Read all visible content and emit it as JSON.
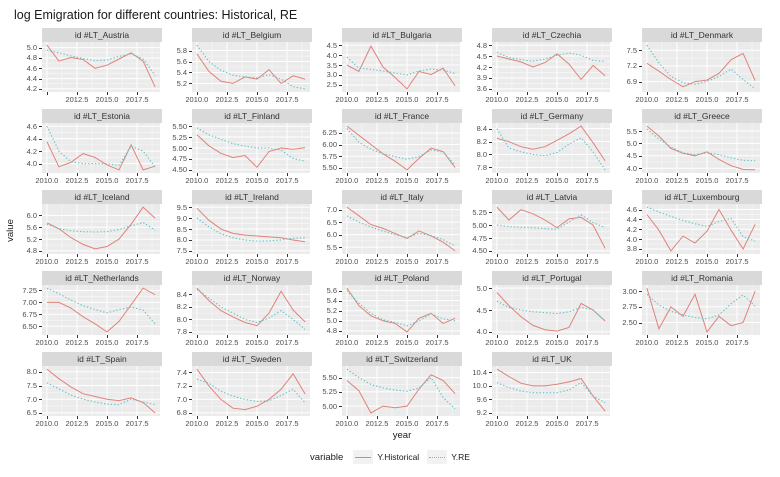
{
  "title": "log Emigration for different countries: Historical, RE",
  "axes": {
    "x_label": "year",
    "y_label": "value",
    "x_tick_values": [
      2010,
      2012.5,
      2015,
      2017.5
    ],
    "x_tick_labels": [
      "2010.0",
      "2012.5",
      "2015.0",
      "2017.5"
    ],
    "x_range": [
      2010,
      2019
    ]
  },
  "legend": {
    "title": "variable",
    "items": [
      {
        "label": "Y.Historical",
        "style": "solid",
        "color": "#e0827a"
      },
      {
        "label": "Y.RE",
        "style": "dotted",
        "color": "#63c3c6"
      }
    ]
  },
  "colors": {
    "historical_line": "#e0827a",
    "re_line": "#63c3c6",
    "panel_bg": "#ebebeb",
    "strip_bg": "#d9d9d9",
    "gridline": "#ffffff",
    "tick_text": "#4d4d4d"
  },
  "chart_data": {
    "type": "line",
    "x": [
      2010,
      2011,
      2012,
      2013,
      2014,
      2015,
      2016,
      2017,
      2018,
      2019
    ],
    "series_names": [
      "Y.Historical",
      "Y.RE"
    ],
    "panels": [
      {
        "title": "id #LT_Austria",
        "y_ticks": [
          "5.0",
          "4.8",
          "4.6",
          "4.4",
          "4.2"
        ],
        "x_tick_labels": [
          "",
          "2012.5",
          "2015.0",
          "2017.5"
        ],
        "historical": [
          5.05,
          4.74,
          4.81,
          4.77,
          4.6,
          4.66,
          4.78,
          4.9,
          4.74,
          4.24
        ],
        "re": [
          4.95,
          4.9,
          4.84,
          4.79,
          4.75,
          4.76,
          4.83,
          4.88,
          4.78,
          4.46
        ]
      },
      {
        "title": "id #LT_Belgium",
        "y_ticks": [
          "5.8",
          "5.6",
          "5.4",
          "5.2"
        ],
        "historical": [
          5.74,
          5.42,
          5.24,
          5.2,
          5.32,
          5.28,
          5.45,
          5.2,
          5.34,
          5.28
        ],
        "re": [
          5.9,
          5.6,
          5.44,
          5.35,
          5.32,
          5.3,
          5.36,
          5.28,
          5.14,
          5.1
        ]
      },
      {
        "title": "id #LT_Bulgaria",
        "y_ticks": [
          "4.5",
          "4.0",
          "3.5",
          "3.0",
          "2.5"
        ],
        "historical": [
          3.5,
          3.18,
          4.45,
          3.4,
          2.88,
          2.3,
          3.18,
          3.02,
          3.34,
          2.45
        ],
        "re": [
          3.9,
          3.34,
          3.28,
          3.2,
          3.1,
          3.0,
          3.2,
          3.3,
          3.24,
          3.08
        ]
      },
      {
        "title": "id #LT_Czechia",
        "y_ticks": [
          "4.8",
          "4.5",
          "4.2",
          "3.9",
          "3.6"
        ],
        "historical": [
          4.5,
          4.42,
          4.34,
          4.2,
          4.32,
          4.56,
          4.28,
          3.86,
          4.24,
          3.96
        ],
        "re": [
          4.6,
          4.46,
          4.4,
          4.36,
          4.42,
          4.52,
          4.58,
          4.52,
          4.38,
          4.35
        ]
      },
      {
        "title": "id #LT_Denmark",
        "y_ticks": [
          "7.5",
          "7.2",
          "6.9"
        ],
        "historical": [
          7.25,
          7.1,
          6.94,
          6.8,
          6.9,
          6.93,
          7.06,
          7.32,
          7.44,
          6.92
        ],
        "re": [
          7.6,
          7.26,
          7.0,
          6.88,
          6.85,
          6.9,
          7.0,
          7.14,
          6.94,
          6.76
        ]
      },
      {
        "title": "id #LT_Estonia",
        "y_ticks": [
          "4.6",
          "4.4",
          "4.2",
          "4.0"
        ],
        "historical": [
          4.35,
          3.95,
          4.02,
          4.16,
          4.1,
          3.98,
          3.9,
          4.3,
          3.9,
          3.96
        ],
        "re": [
          4.6,
          4.2,
          4.03,
          4.0,
          4.0,
          4.0,
          3.97,
          4.28,
          4.2,
          3.95
        ]
      },
      {
        "title": "id #LT_Finland",
        "y_ticks": [
          "5.50",
          "5.25",
          "5.00",
          "4.75",
          "4.50"
        ],
        "historical": [
          5.3,
          5.05,
          4.88,
          4.78,
          4.83,
          4.56,
          4.92,
          5.0,
          4.97,
          5.01
        ],
        "re": [
          5.46,
          5.3,
          5.2,
          5.1,
          5.04,
          5.0,
          5.0,
          4.95,
          4.76,
          4.7
        ]
      },
      {
        "title": "id #LT_France",
        "y_ticks": [
          "6.25",
          "6.00",
          "5.75",
          "5.50"
        ],
        "historical": [
          6.4,
          6.2,
          6.0,
          5.8,
          5.64,
          5.45,
          5.7,
          5.92,
          5.85,
          5.5
        ],
        "re": [
          6.35,
          6.05,
          5.9,
          5.8,
          5.74,
          5.68,
          5.74,
          5.88,
          5.84,
          5.55
        ]
      },
      {
        "title": "id #LT_Germany",
        "y_ticks": [
          "8.4",
          "8.2",
          "8.0",
          "7.8"
        ],
        "historical": [
          8.25,
          8.2,
          8.12,
          8.08,
          8.12,
          8.22,
          8.32,
          8.44,
          8.18,
          7.9
        ],
        "re": [
          8.4,
          8.1,
          8.04,
          8.0,
          7.98,
          8.03,
          8.16,
          8.26,
          8.04,
          7.76
        ]
      },
      {
        "title": "id #LT_Greece",
        "y_ticks": [
          "5.5",
          "5.0",
          "4.5",
          "4.0"
        ],
        "historical": [
          5.7,
          5.3,
          4.8,
          4.6,
          4.5,
          4.66,
          4.35,
          4.1,
          3.95,
          3.93
        ],
        "re": [
          5.58,
          5.18,
          4.85,
          4.62,
          4.55,
          4.62,
          4.55,
          4.42,
          4.32,
          4.3
        ]
      },
      {
        "title": "id #LT_Iceland",
        "y_ticks": [
          "6.0",
          "5.6",
          "5.2",
          "4.8"
        ],
        "historical": [
          5.75,
          5.55,
          5.25,
          5.02,
          4.87,
          4.95,
          5.2,
          5.7,
          6.28,
          5.9
        ],
        "re": [
          5.7,
          5.55,
          5.48,
          5.45,
          5.44,
          5.45,
          5.52,
          5.65,
          5.76,
          5.5
        ]
      },
      {
        "title": "id #LT_Ireland",
        "y_ticks": [
          "9.5",
          "9.0",
          "8.5",
          "8.0",
          "7.5"
        ],
        "historical": [
          9.45,
          8.9,
          8.5,
          8.3,
          8.22,
          8.18,
          8.14,
          8.1,
          8.0,
          7.92
        ],
        "re": [
          9.0,
          8.6,
          8.28,
          8.1,
          8.0,
          7.95,
          7.96,
          8.0,
          8.08,
          8.1
        ]
      },
      {
        "title": "id #LT_Italy",
        "y_ticks": [
          "7.0",
          "6.5",
          "6.0",
          "5.5"
        ],
        "historical": [
          7.1,
          6.75,
          6.4,
          6.25,
          6.05,
          5.85,
          6.15,
          5.95,
          5.7,
          5.35
        ],
        "re": [
          6.75,
          6.5,
          6.3,
          6.14,
          6.0,
          5.88,
          6.05,
          5.97,
          5.8,
          5.55
        ]
      },
      {
        "title": "id #LT_Latvia",
        "y_ticks": [
          "5.25",
          "5.00",
          "4.75",
          "4.50"
        ],
        "historical": [
          5.35,
          5.1,
          5.3,
          5.22,
          5.1,
          4.95,
          5.12,
          5.15,
          5.0,
          4.55
        ],
        "re": [
          5.0,
          4.97,
          4.96,
          4.95,
          4.93,
          4.92,
          5.06,
          5.2,
          5.05,
          4.95
        ]
      },
      {
        "title": "id #LT_Luxembourg",
        "y_ticks": [
          "4.6",
          "4.4",
          "4.2",
          "4.0",
          "3.8"
        ],
        "historical": [
          4.5,
          4.18,
          3.76,
          4.06,
          3.92,
          4.16,
          4.6,
          4.18,
          3.8,
          4.3
        ],
        "re": [
          4.65,
          4.55,
          4.46,
          4.38,
          4.31,
          4.26,
          4.36,
          4.42,
          4.05,
          3.96
        ]
      },
      {
        "title": "id #LT_Netherlands",
        "y_ticks": [
          "7.25",
          "7.00",
          "6.75",
          "6.50"
        ],
        "historical": [
          7.0,
          7.0,
          6.88,
          6.7,
          6.55,
          6.38,
          6.6,
          6.95,
          7.3,
          7.16
        ],
        "re": [
          7.3,
          7.18,
          7.05,
          6.93,
          6.85,
          6.78,
          6.85,
          6.9,
          6.84,
          6.55
        ]
      },
      {
        "title": "id #LT_Norway",
        "y_ticks": [
          "8.4",
          "8.2",
          "8.0",
          "7.8"
        ],
        "historical": [
          8.5,
          8.3,
          8.14,
          8.04,
          7.95,
          7.9,
          8.1,
          8.45,
          8.15,
          7.96
        ],
        "re": [
          8.48,
          8.34,
          8.2,
          8.1,
          8.0,
          7.95,
          8.02,
          8.14,
          8.0,
          7.84
        ]
      },
      {
        "title": "id #LT_Poland",
        "y_ticks": [
          "5.6",
          "5.4",
          "5.2",
          "5.0",
          "4.8"
        ],
        "historical": [
          5.65,
          5.3,
          5.1,
          5.0,
          4.95,
          4.78,
          5.05,
          5.15,
          4.95,
          5.05
        ],
        "re": [
          5.6,
          5.35,
          5.15,
          5.02,
          4.97,
          4.9,
          5.0,
          5.14,
          5.04,
          5.0
        ]
      },
      {
        "title": "id #LT_Portugal",
        "y_ticks": [
          "5.0",
          "4.5",
          "4.0"
        ],
        "historical": [
          4.9,
          4.6,
          4.35,
          4.15,
          4.05,
          4.02,
          4.1,
          4.65,
          4.5,
          4.25
        ],
        "re": [
          4.7,
          4.56,
          4.5,
          4.46,
          4.44,
          4.42,
          4.46,
          4.56,
          4.5,
          4.25
        ]
      },
      {
        "title": "id #LT_Romania",
        "y_ticks": [
          "3.00",
          "2.75",
          "2.50"
        ],
        "historical": [
          3.05,
          2.4,
          2.75,
          2.6,
          2.95,
          2.35,
          2.6,
          2.45,
          2.5,
          3.0
        ],
        "re": [
          2.95,
          2.78,
          2.68,
          2.62,
          2.58,
          2.56,
          2.62,
          2.8,
          2.94,
          2.76
        ]
      },
      {
        "title": "id #LT_Spain",
        "y_ticks": [
          "8.0",
          "7.5",
          "7.0",
          "6.5"
        ],
        "historical": [
          8.1,
          7.75,
          7.45,
          7.2,
          7.1,
          7.0,
          6.95,
          7.05,
          6.88,
          6.5
        ],
        "re": [
          7.6,
          7.38,
          7.15,
          7.0,
          6.9,
          6.82,
          6.8,
          7.0,
          6.9,
          6.8
        ]
      },
      {
        "title": "id #LT_Sweden",
        "y_ticks": [
          "7.4",
          "7.2",
          "7.0",
          "6.8"
        ],
        "historical": [
          7.45,
          7.2,
          7.0,
          6.87,
          6.85,
          6.9,
          7.0,
          7.15,
          7.38,
          7.08
        ],
        "re": [
          7.3,
          7.24,
          7.12,
          7.05,
          7.0,
          6.97,
          6.98,
          7.06,
          7.15,
          6.95
        ]
      },
      {
        "title": "id #LT_Switzerland",
        "y_ticks": [
          "5.50",
          "5.25",
          "5.00"
        ],
        "historical": [
          5.45,
          5.27,
          4.88,
          5.0,
          4.97,
          5.0,
          5.3,
          5.55,
          5.45,
          5.22
        ],
        "re": [
          5.65,
          5.5,
          5.38,
          5.32,
          5.28,
          5.26,
          5.32,
          5.5,
          5.15,
          4.95
        ]
      },
      {
        "title": "id #LT_UK",
        "y_ticks": [
          "10.4",
          "10.0",
          "9.6",
          "9.2"
        ],
        "historical": [
          10.5,
          10.28,
          10.08,
          10.0,
          10.0,
          10.05,
          10.12,
          10.22,
          9.7,
          9.25
        ],
        "re": [
          10.1,
          9.95,
          9.85,
          9.8,
          9.8,
          9.8,
          9.88,
          10.1,
          9.7,
          9.5
        ]
      }
    ]
  }
}
